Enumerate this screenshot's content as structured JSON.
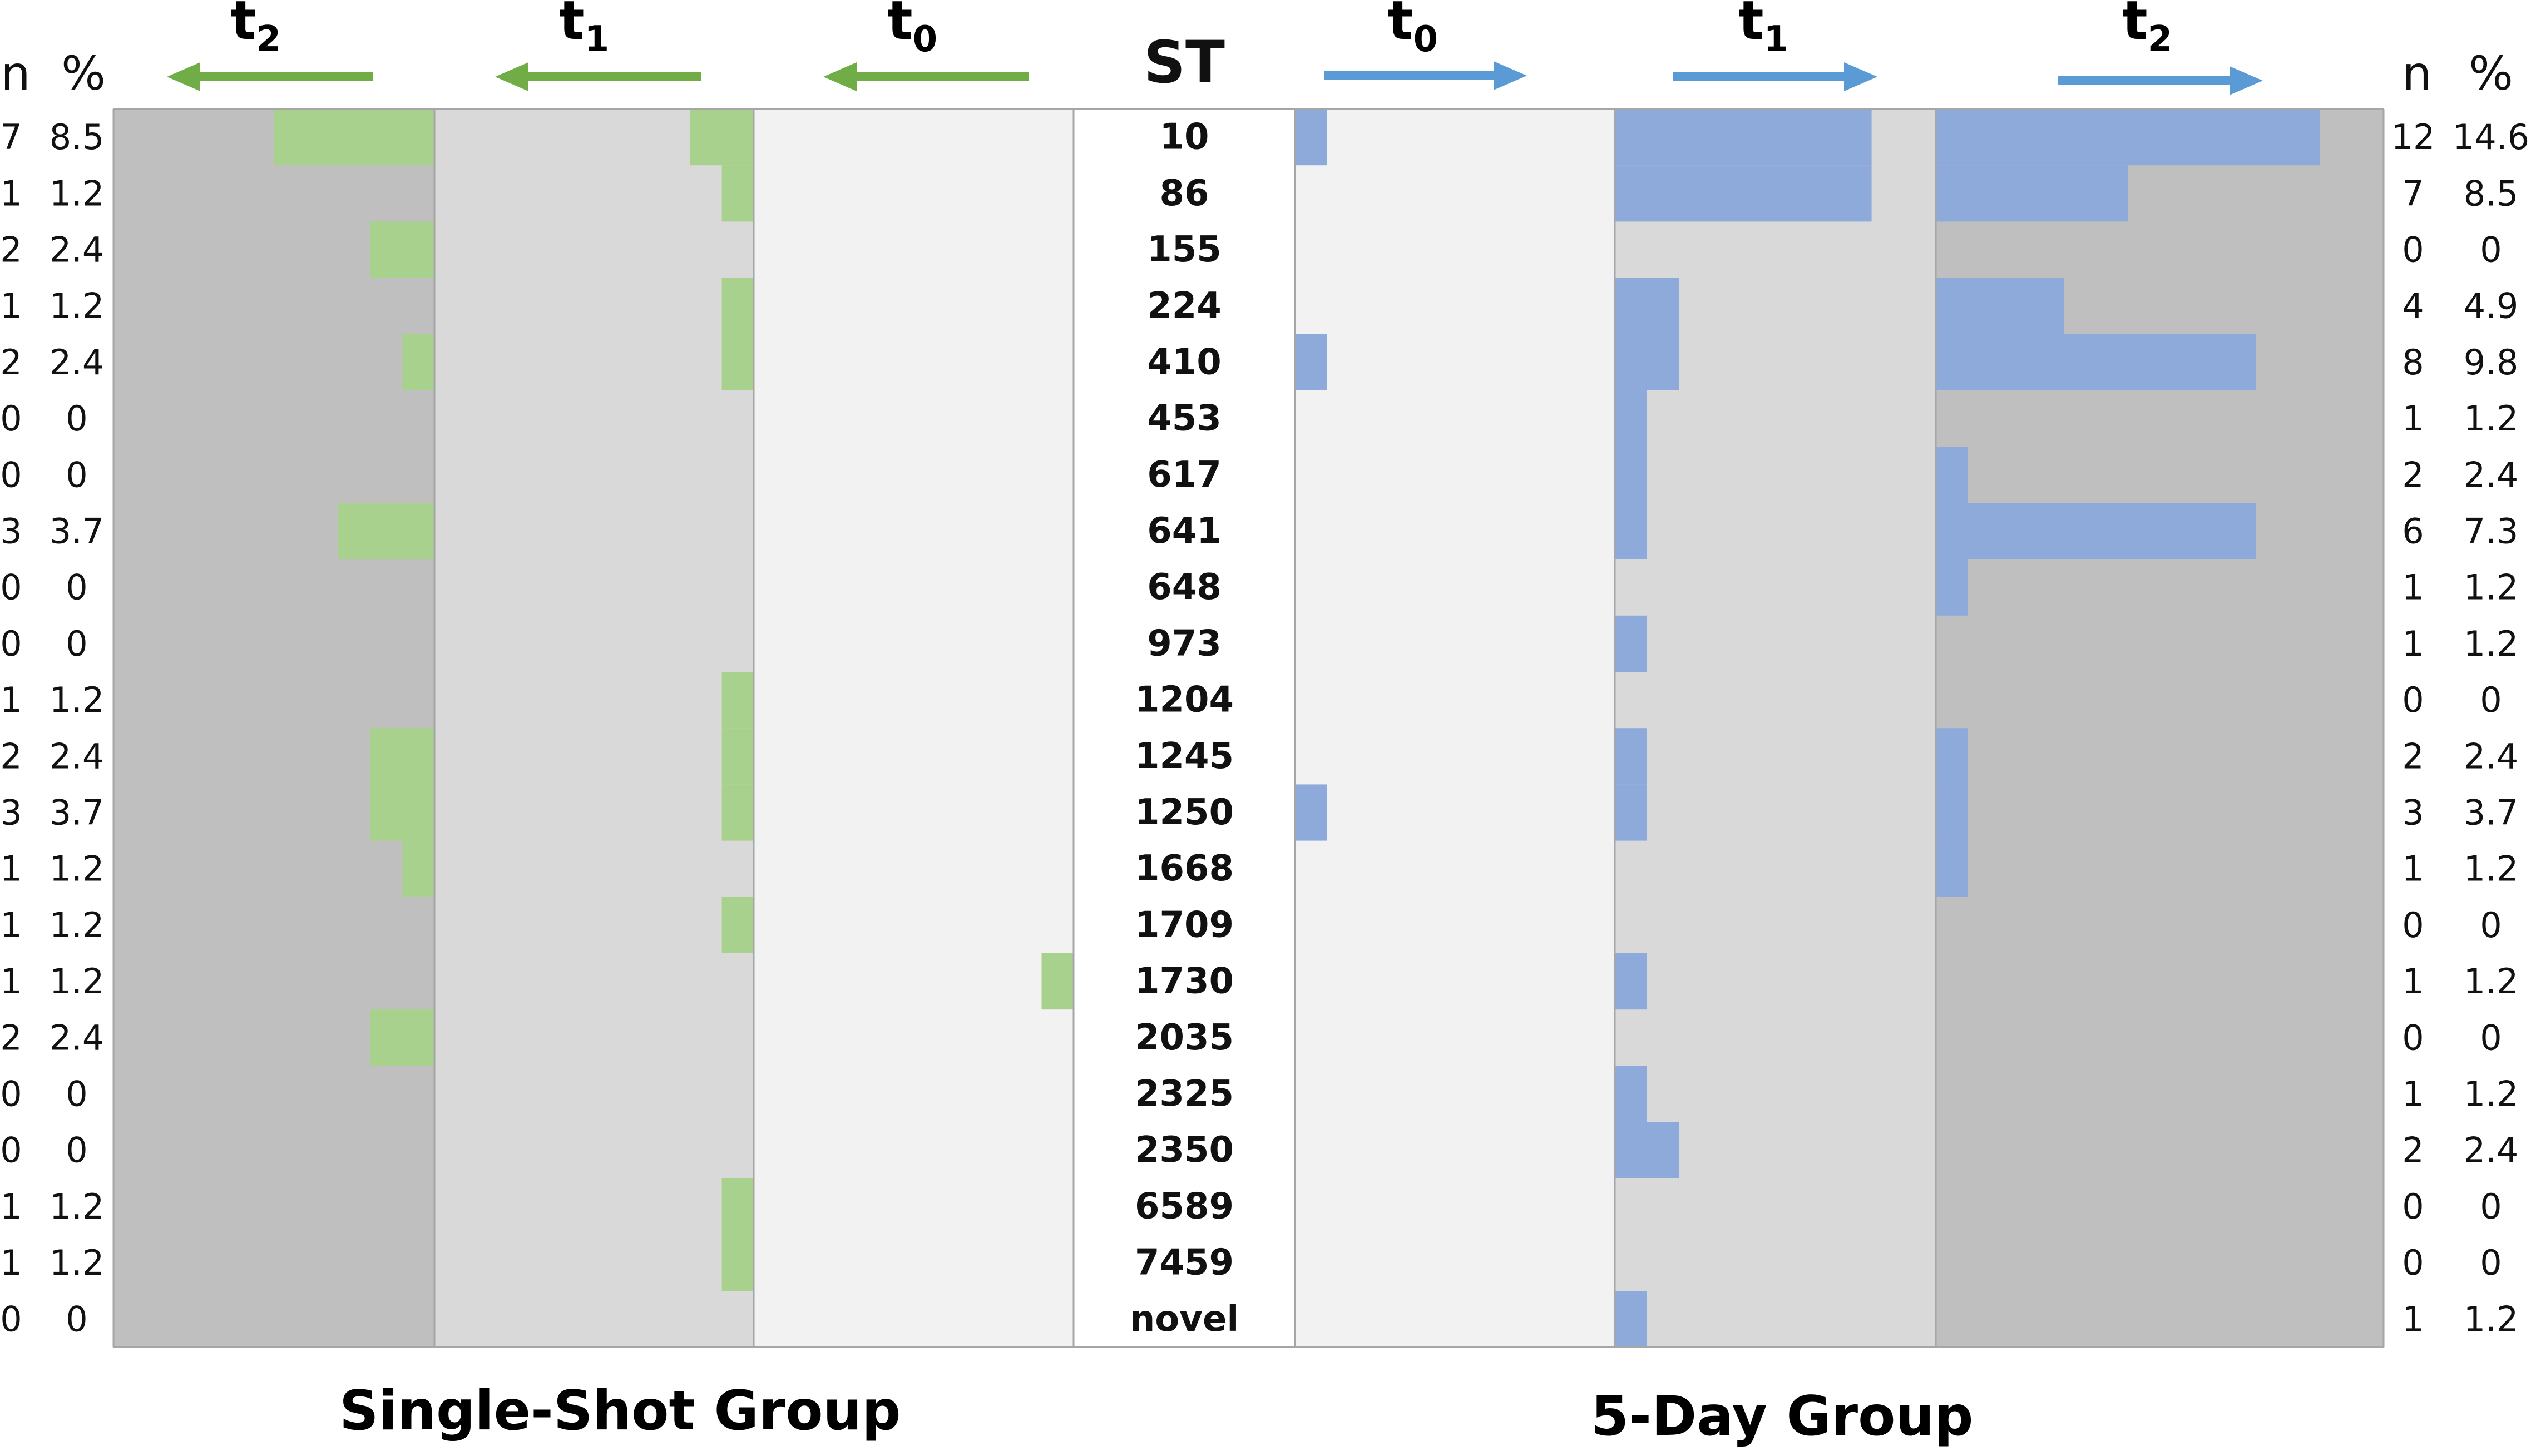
{
  "chart_data": {
    "type": "bar",
    "subtype": "mirrored-horizontal-bar",
    "center_label": "ST",
    "categories": [
      "10",
      "86",
      "155",
      "224",
      "410",
      "453",
      "617",
      "641",
      "648",
      "973",
      "1204",
      "1245",
      "1250",
      "1668",
      "1709",
      "1730",
      "2035",
      "2325",
      "2350",
      "6589",
      "7459",
      "novel"
    ],
    "left_group": {
      "title": "Single-Shot Group",
      "color": "#a9d18e",
      "arrow_color": "#70ad47",
      "side_headers": [
        "n",
        "%"
      ],
      "panels": [
        {
          "name": "t0",
          "base": "t",
          "sub": "0",
          "xlim": [
            0,
            10
          ],
          "values": [
            0,
            0,
            0,
            0,
            0,
            0,
            0,
            0,
            0,
            0,
            0,
            0,
            0,
            0,
            0,
            1,
            0,
            0,
            0,
            0,
            0,
            0
          ]
        },
        {
          "name": "t1",
          "base": "t",
          "sub": "1",
          "xlim": [
            0,
            10
          ],
          "values": [
            2,
            1,
            0,
            1,
            1,
            0,
            0,
            0,
            0,
            0,
            1,
            1,
            1,
            0,
            1,
            0,
            0,
            0,
            0,
            1,
            1,
            0
          ]
        },
        {
          "name": "t2",
          "base": "t",
          "sub": "2",
          "xlim": [
            0,
            10
          ],
          "values": [
            5,
            0,
            2,
            0,
            1,
            0,
            0,
            3,
            0,
            0,
            0,
            2,
            2,
            1,
            0,
            0,
            2,
            0,
            0,
            0,
            0,
            0
          ]
        }
      ],
      "n": [
        "7",
        "1",
        "2",
        "1",
        "2",
        "0",
        "0",
        "3",
        "0",
        "0",
        "1",
        "2",
        "3",
        "1",
        "1",
        "1",
        "2",
        "0",
        "0",
        "1",
        "1",
        "0"
      ],
      "pct": [
        "8.5",
        "1.2",
        "2.4",
        "1.2",
        "2.4",
        "0",
        "0",
        "3.7",
        "0",
        "0",
        "1.2",
        "2.4",
        "3.7",
        "1.2",
        "1.2",
        "1.2",
        "2.4",
        "0",
        "0",
        "1.2",
        "1.2",
        "0"
      ]
    },
    "right_group": {
      "title": "5-Day Group",
      "color": "#8eaadb",
      "arrow_color": "#5b9bd5",
      "side_headers": [
        "n",
        "%"
      ],
      "panels": [
        {
          "name": "t0",
          "base": "t",
          "sub": "0",
          "xlim": [
            0,
            10
          ],
          "values": [
            1,
            0,
            0,
            0,
            1,
            0,
            0,
            0,
            0,
            0,
            0,
            0,
            1,
            0,
            0,
            0,
            0,
            0,
            0,
            0,
            0,
            0
          ]
        },
        {
          "name": "t1",
          "base": "t",
          "sub": "1",
          "xlim": [
            0,
            10
          ],
          "values": [
            8,
            8,
            0,
            2,
            2,
            1,
            1,
            1,
            0,
            1,
            0,
            1,
            1,
            0,
            0,
            1,
            0,
            1,
            2,
            0,
            0,
            1
          ]
        },
        {
          "name": "t2",
          "base": "t",
          "sub": "2",
          "xlim": [
            0,
            14
          ],
          "values": [
            12,
            6,
            0,
            4,
            10,
            0,
            1,
            10,
            1,
            0,
            0,
            1,
            1,
            1,
            0,
            0,
            0,
            0,
            0,
            0,
            0,
            0
          ]
        }
      ],
      "n": [
        "12",
        "7",
        "0",
        "4",
        "8",
        "1",
        "2",
        "6",
        "1",
        "1",
        "0",
        "2",
        "3",
        "1",
        "0",
        "1",
        "0",
        "1",
        "2",
        "0",
        "0",
        "1"
      ],
      "pct": [
        "14.6",
        "8.5",
        "0",
        "4.9",
        "9.8",
        "1.2",
        "2.4",
        "7.3",
        "1.2",
        "1.2",
        "0",
        "2.4",
        "3.7",
        "1.2",
        "0",
        "1.2",
        "0",
        "1.2",
        "2.4",
        "0",
        "0",
        "1.2"
      ]
    },
    "panel_backgrounds": {
      "t0": "#f2f2f2",
      "t1": "#d9d9d9",
      "t2": "#bfbfbf",
      "center": "#ffffff"
    }
  }
}
